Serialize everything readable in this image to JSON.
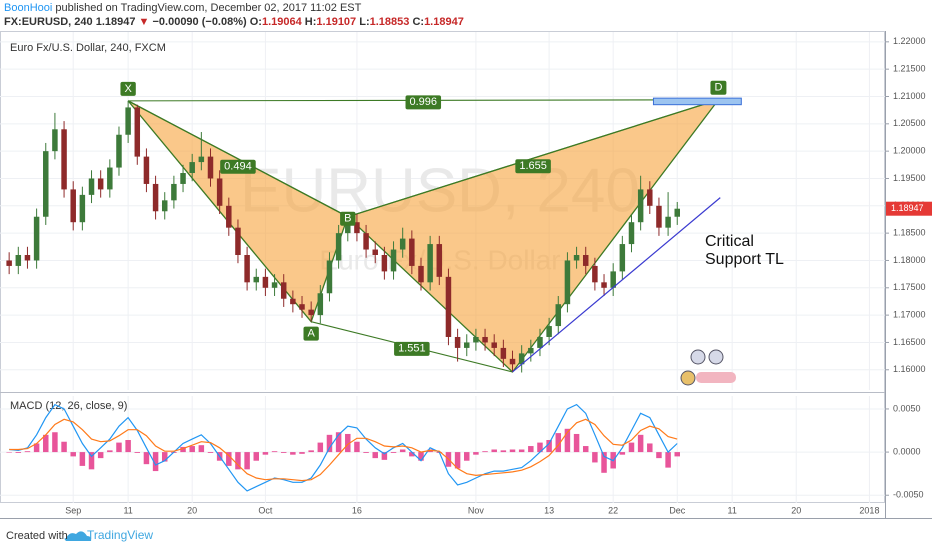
{
  "header": {
    "author": "BoonHooi",
    "published": "published on TradingView.com, December 02, 2017 11:02 EST",
    "symbol": "FX:EURUSD, 240",
    "last": "1.18947",
    "arrow": "▼",
    "change": "−0.00090 (−0.08%)",
    "fields": [
      {
        "label": "O:",
        "value": "1.19064"
      },
      {
        "label": "H:",
        "value": "1.19107"
      },
      {
        "label": "L:",
        "value": "1.18853"
      },
      {
        "label": "C:",
        "value": "1.18947"
      }
    ]
  },
  "footer": {
    "prefix": "Created with",
    "brand": "TradingView"
  },
  "chart_data": {
    "type": "candlestick",
    "title": "Euro Fx/U.S. Dollar, 240, FXCM",
    "watermark": [
      "EURUSD, 240",
      "Euro Fx/U.S. Dollar"
    ],
    "up_color": "#3d7a3a",
    "down_color": "#8e2a2a",
    "grid": true,
    "x": [
      -7,
      -6,
      -5,
      -4,
      -3,
      -2,
      -1,
      0,
      1,
      2,
      3,
      4,
      5,
      6,
      7,
      8,
      9,
      10,
      11,
      12,
      13,
      14,
      15,
      16,
      17,
      18,
      19,
      20,
      21,
      22,
      23,
      24,
      25,
      26,
      27,
      28,
      29,
      30,
      31,
      32,
      33,
      34,
      35,
      36,
      37,
      38,
      39,
      40,
      41,
      42,
      43,
      44,
      45,
      46,
      47,
      48,
      49,
      50,
      51,
      52,
      53,
      54,
      55,
      56,
      57,
      58,
      59,
      60,
      61,
      62,
      63,
      64,
      65,
      66
    ],
    "ohlc": [
      [
        1.18,
        1.1815,
        1.1775,
        1.179
      ],
      [
        1.179,
        1.1825,
        1.1775,
        1.181
      ],
      [
        1.181,
        1.1825,
        1.1785,
        1.18
      ],
      [
        1.18,
        1.1895,
        1.1785,
        1.188
      ],
      [
        1.188,
        1.2015,
        1.1865,
        1.2
      ],
      [
        1.2,
        1.207,
        1.1985,
        1.204
      ],
      [
        1.204,
        1.2055,
        1.1915,
        1.193
      ],
      [
        1.193,
        1.1945,
        1.1855,
        1.187
      ],
      [
        1.187,
        1.1935,
        1.1855,
        1.192
      ],
      [
        1.192,
        1.1965,
        1.1905,
        1.195
      ],
      [
        1.195,
        1.1965,
        1.1915,
        1.193
      ],
      [
        1.193,
        1.1985,
        1.1915,
        1.197
      ],
      [
        1.197,
        1.2045,
        1.1955,
        1.203
      ],
      [
        1.203,
        1.2092,
        1.2015,
        1.208
      ],
      [
        1.208,
        1.2085,
        1.1975,
        1.199
      ],
      [
        1.199,
        1.2005,
        1.1925,
        1.194
      ],
      [
        1.194,
        1.1955,
        1.1875,
        1.189
      ],
      [
        1.189,
        1.1925,
        1.1875,
        1.191
      ],
      [
        1.191,
        1.1955,
        1.1895,
        1.194
      ],
      [
        1.194,
        1.1975,
        1.1925,
        1.196
      ],
      [
        1.196,
        1.1995,
        1.1945,
        1.198
      ],
      [
        1.198,
        1.2035,
        1.1965,
        1.199
      ],
      [
        1.199,
        1.2005,
        1.1935,
        1.195
      ],
      [
        1.195,
        1.1965,
        1.1885,
        1.19
      ],
      [
        1.19,
        1.1915,
        1.1845,
        1.186
      ],
      [
        1.186,
        1.1875,
        1.1795,
        1.181
      ],
      [
        1.181,
        1.1825,
        1.1745,
        1.176
      ],
      [
        1.176,
        1.1785,
        1.1745,
        1.177
      ],
      [
        1.177,
        1.1785,
        1.1735,
        1.175
      ],
      [
        1.175,
        1.1775,
        1.1735,
        1.176
      ],
      [
        1.176,
        1.1775,
        1.1715,
        1.173
      ],
      [
        1.173,
        1.1745,
        1.1705,
        1.172
      ],
      [
        1.172,
        1.1735,
        1.1695,
        1.171
      ],
      [
        1.171,
        1.1725,
        1.1688,
        1.17
      ],
      [
        1.17,
        1.1755,
        1.1685,
        1.174
      ],
      [
        1.174,
        1.1815,
        1.1725,
        1.18
      ],
      [
        1.18,
        1.1865,
        1.1785,
        1.185
      ],
      [
        1.185,
        1.188,
        1.1835,
        1.187
      ],
      [
        1.187,
        1.1885,
        1.1835,
        1.185
      ],
      [
        1.185,
        1.1865,
        1.1805,
        1.182
      ],
      [
        1.182,
        1.1835,
        1.1795,
        1.181
      ],
      [
        1.181,
        1.1825,
        1.1765,
        1.178
      ],
      [
        1.178,
        1.1835,
        1.1765,
        1.182
      ],
      [
        1.182,
        1.186,
        1.1805,
        1.184
      ],
      [
        1.184,
        1.1855,
        1.1775,
        1.179
      ],
      [
        1.179,
        1.1805,
        1.1745,
        1.176
      ],
      [
        1.176,
        1.1845,
        1.1745,
        1.183
      ],
      [
        1.183,
        1.1845,
        1.1755,
        1.177
      ],
      [
        1.177,
        1.1785,
        1.1645,
        1.166
      ],
      [
        1.166,
        1.1675,
        1.1615,
        1.164
      ],
      [
        1.164,
        1.1665,
        1.1625,
        1.165
      ],
      [
        1.165,
        1.1675,
        1.1635,
        1.166
      ],
      [
        1.166,
        1.1675,
        1.1635,
        1.165
      ],
      [
        1.165,
        1.1665,
        1.1625,
        1.164
      ],
      [
        1.164,
        1.1655,
        1.1605,
        1.162
      ],
      [
        1.162,
        1.1635,
        1.1596,
        1.161
      ],
      [
        1.161,
        1.1645,
        1.1595,
        1.163
      ],
      [
        1.163,
        1.1655,
        1.1615,
        1.164
      ],
      [
        1.164,
        1.1675,
        1.1625,
        1.166
      ],
      [
        1.166,
        1.1695,
        1.1645,
        1.168
      ],
      [
        1.168,
        1.1735,
        1.1665,
        1.172
      ],
      [
        1.172,
        1.1815,
        1.1705,
        1.18
      ],
      [
        1.18,
        1.1825,
        1.1785,
        1.181
      ],
      [
        1.181,
        1.1825,
        1.1775,
        1.179
      ],
      [
        1.179,
        1.1805,
        1.1745,
        1.176
      ],
      [
        1.176,
        1.1775,
        1.1735,
        1.175
      ],
      [
        1.175,
        1.1795,
        1.1735,
        1.178
      ],
      [
        1.178,
        1.1845,
        1.1765,
        1.183
      ],
      [
        1.183,
        1.1885,
        1.1815,
        1.187
      ],
      [
        1.187,
        1.1955,
        1.1855,
        1.193
      ],
      [
        1.193,
        1.1945,
        1.1885,
        1.19
      ],
      [
        1.19,
        1.1915,
        1.1845,
        1.186
      ],
      [
        1.186,
        1.1925,
        1.1845,
        1.188
      ],
      [
        1.188,
        1.1907,
        1.1865,
        1.18947
      ]
    ],
    "xlim": [
      -8,
      88.7
    ],
    "xticks": [
      {
        "value": 0,
        "label": "Sep"
      },
      {
        "value": 6,
        "label": "11"
      },
      {
        "value": 13,
        "label": "20"
      },
      {
        "value": 21,
        "label": "Oct"
      },
      {
        "value": 31,
        "label": "16"
      },
      {
        "value": 44,
        "label": "Nov"
      },
      {
        "value": 52,
        "label": "13"
      },
      {
        "value": 59,
        "label": "22"
      },
      {
        "value": 66,
        "label": "Dec"
      },
      {
        "value": 72,
        "label": "11"
      },
      {
        "value": 79,
        "label": "20"
      },
      {
        "value": 87,
        "label": "2018"
      }
    ],
    "ylim": [
      1.1563,
      1.2218
    ],
    "yticks": [
      {
        "value": 1.16,
        "label": "1.16000"
      },
      {
        "value": 1.165,
        "label": "1.16500"
      },
      {
        "value": 1.17,
        "label": "1.17000"
      },
      {
        "value": 1.175,
        "label": "1.17500"
      },
      {
        "value": 1.18,
        "label": "1.18000"
      },
      {
        "value": 1.185,
        "label": "1.18500"
      },
      {
        "value": 1.19,
        "label": "1.19000"
      },
      {
        "value": 1.195,
        "label": "1.19500"
      },
      {
        "value": 1.2,
        "label": "1.20000"
      },
      {
        "value": 1.205,
        "label": "1.20500"
      },
      {
        "value": 1.21,
        "label": "1.21000"
      },
      {
        "value": 1.215,
        "label": "1.21500"
      },
      {
        "value": 1.22,
        "label": "1.22000"
      }
    ],
    "pattern": {
      "fill_color": "#f7a43c",
      "line_color": "#3d7a25",
      "points": [
        {
          "label": "X",
          "x": 6,
          "y": 1.2092
        },
        {
          "label": "A",
          "x": 26,
          "y": 1.1688
        },
        {
          "label": "B",
          "x": 30,
          "y": 1.188
        },
        {
          "label": null,
          "x": 48,
          "y": 1.1596
        },
        {
          "label": "D",
          "x": 70.5,
          "y": 1.2094
        }
      ],
      "ratios": [
        "0.494",
        "1.655",
        "0.996",
        "1.551"
      ]
    },
    "target_zone": {
      "x": [
        63.4,
        73
      ],
      "y": [
        1.2085,
        1.2097
      ],
      "color": "#9cc4f0"
    },
    "trend_line": {
      "x": [
        48,
        70.7
      ],
      "y": [
        1.1596,
        1.1915
      ],
      "color": "#3b3bd0",
      "label": [
        "Critical",
        "Support TL"
      ]
    },
    "indicator": {
      "title": "MACD (12, 26, close, 9)",
      "ylim": [
        -0.0059,
        0.0065
      ],
      "yticks": [
        {
          "value": 0.005,
          "label": "0.0050"
        },
        {
          "value": 0,
          "label": "0.0000"
        },
        {
          "value": -0.005,
          "label": "-0.0050"
        }
      ],
      "series": [
        {
          "type": "bar",
          "color": "#e8559a",
          "values": [
            0,
            -0.0001,
            0.0001,
            0.001,
            0.002,
            0.0023,
            0.0012,
            -0.0005,
            -0.0016,
            -0.002,
            -0.0007,
            0.0002,
            0.0011,
            0.0014,
            -0.0001,
            -0.0014,
            -0.0022,
            -0.0011,
            -0.0001,
            0.0006,
            0.0007,
            0.0008,
            -0.0001,
            -0.001,
            -0.0016,
            -0.002,
            -0.002,
            -0.001,
            -0.0003,
            0.0001,
            -0.0001,
            -0.0003,
            -0.0002,
            0.0002,
            0.0011,
            0.002,
            0.0023,
            0.0021,
            0.0012,
            -0.0001,
            -0.0007,
            -0.0009,
            -0.0001,
            0.0003,
            -0.0005,
            -0.001,
            0.0003,
            -0.0001,
            -0.0017,
            -0.0019,
            -0.001,
            -0.0003,
            0.0001,
            0.0003,
            0.0002,
            0.0003,
            0.0003,
            0.0007,
            0.0011,
            0.0014,
            0.0022,
            0.0027,
            0.0021,
            0.0007,
            -0.0012,
            -0.0024,
            -0.0019,
            -0.0003,
            0.0011,
            0.002,
            0.001,
            -0.0007,
            -0.0018,
            -0.0005
          ]
        },
        {
          "type": "line",
          "color": "#2196f3",
          "values": [
            0.0003,
            0.0002,
            0.0005,
            0.002,
            0.004,
            0.0055,
            0.005,
            0.003,
            0.001,
            -0.0005,
            0.0005,
            0.0015,
            0.003,
            0.004,
            0.0025,
            0.0005,
            -0.0015,
            -0.001,
            0,
            0.001,
            0.0015,
            0.002,
            0.001,
            -0.0005,
            -0.002,
            -0.0035,
            -0.0045,
            -0.004,
            -0.0035,
            -0.003,
            -0.0032,
            -0.0035,
            -0.0035,
            -0.003,
            -0.0015,
            0.0005,
            0.002,
            0.003,
            0.0028,
            0.0015,
            0.0005,
            -0.0002,
            0.0005,
            0.001,
            0,
            -0.001,
            0.0005,
            0,
            -0.0025,
            -0.0038,
            -0.0035,
            -0.003,
            -0.0025,
            -0.0022,
            -0.0022,
            -0.002,
            -0.0018,
            -0.001,
            0,
            0.001,
            0.003,
            0.005,
            0.0055,
            0.0045,
            0.002,
            -0.0005,
            -0.001,
            0.0005,
            0.0025,
            0.0045,
            0.004,
            0.002,
            0,
            0.001
          ]
        },
        {
          "type": "line",
          "color": "#ff7a1a",
          "values": [
            0.0003,
            0.0003,
            0.0004,
            0.001,
            0.002,
            0.0032,
            0.0038,
            0.0035,
            0.0026,
            0.0015,
            0.0012,
            0.0013,
            0.0019,
            0.0026,
            0.0026,
            0.0019,
            0.0007,
            0.0001,
            0.0001,
            0.0004,
            0.0008,
            0.0012,
            0.0011,
            0.0005,
            -0.0004,
            -0.0015,
            -0.0025,
            -0.003,
            -0.0032,
            -0.0031,
            -0.0031,
            -0.0032,
            -0.0033,
            -0.0032,
            -0.0026,
            -0.0015,
            -0.0003,
            0.0009,
            0.0016,
            0.0016,
            0.0012,
            0.0007,
            0.0006,
            0.0007,
            0.0005,
            0,
            0.0002,
            0.0001,
            -0.0008,
            -0.0019,
            -0.0025,
            -0.0027,
            -0.0026,
            -0.0025,
            -0.0024,
            -0.0023,
            -0.0021,
            -0.0017,
            -0.0011,
            -0.0004,
            0.0008,
            0.0023,
            0.0034,
            0.0038,
            0.0032,
            0.0019,
            0.0009,
            0.0008,
            0.0014,
            0.0025,
            0.003,
            0.0027,
            0.0018,
            0.0015
          ]
        }
      ]
    }
  }
}
